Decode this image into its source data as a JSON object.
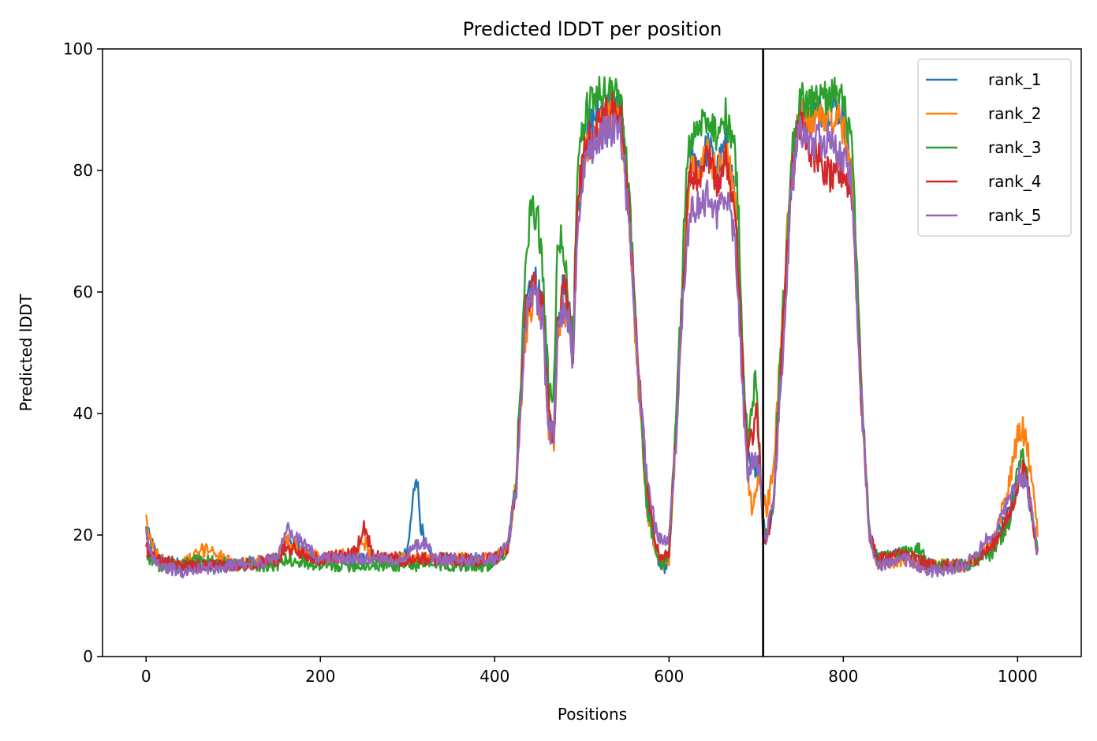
{
  "chart_data": {
    "type": "line",
    "title": "Predicted lDDT per position",
    "xlabel": "Positions",
    "ylabel": "Predicted lDDT",
    "xlim": [
      -50,
      1073
    ],
    "ylim": [
      0,
      100
    ],
    "xticks": [
      0,
      200,
      400,
      600,
      800,
      1000
    ],
    "yticks": [
      0,
      20,
      40,
      60,
      80,
      100
    ],
    "legend_position": "top-right",
    "grid": false,
    "vline_x": 708,
    "vline_color": "#000000",
    "noise_amplitude": 3,
    "series": [
      {
        "name": "rank_1",
        "color": "#1f77b4",
        "x": [
          0,
          5,
          15,
          40,
          100,
          150,
          160,
          200,
          260,
          290,
          300,
          305,
          310,
          315,
          320,
          330,
          360,
          400,
          415,
          425,
          435,
          445,
          455,
          462,
          468,
          472,
          478,
          485,
          490,
          495,
          505,
          515,
          525,
          535,
          545,
          555,
          565,
          575,
          585,
          592,
          600,
          608,
          615,
          620,
          625,
          635,
          645,
          655,
          665,
          675,
          680,
          685,
          690,
          695,
          700,
          704,
          708,
          712,
          720,
          730,
          740,
          750,
          760,
          770,
          780,
          790,
          800,
          810,
          816,
          820,
          830,
          840,
          870,
          900,
          940,
          970,
          990,
          1000,
          1005,
          1012,
          1018,
          1023
        ],
        "y": [
          21,
          19,
          16,
          15,
          15,
          16,
          19,
          16,
          16,
          16,
          17,
          24,
          31,
          22,
          18,
          16,
          16,
          16,
          18,
          29,
          55,
          63,
          58,
          40,
          36,
          54,
          60,
          57,
          50,
          74,
          86,
          89,
          90,
          91,
          90,
          72,
          45,
          26,
          17,
          14,
          16,
          36,
          58,
          74,
          81,
          81,
          84,
          80,
          84,
          77,
          64,
          46,
          33,
          30,
          32,
          34,
          22,
          20,
          25,
          50,
          78,
          90,
          88,
          90,
          90,
          91,
          89,
          80,
          60,
          45,
          20,
          16,
          17,
          15,
          15,
          18,
          24,
          28,
          30,
          27,
          22,
          17
        ]
      },
      {
        "name": "rank_2",
        "color": "#ff7f0e",
        "x": [
          0,
          5,
          15,
          40,
          70,
          100,
          150,
          160,
          200,
          240,
          250,
          260,
          290,
          310,
          330,
          360,
          400,
          415,
          425,
          435,
          445,
          455,
          462,
          468,
          472,
          478,
          485,
          490,
          495,
          505,
          515,
          525,
          535,
          545,
          555,
          565,
          575,
          585,
          592,
          600,
          608,
          615,
          620,
          625,
          635,
          645,
          655,
          665,
          675,
          680,
          685,
          690,
          695,
          700,
          704,
          708,
          712,
          720,
          730,
          740,
          750,
          760,
          770,
          780,
          790,
          800,
          810,
          816,
          820,
          830,
          840,
          870,
          900,
          940,
          970,
          990,
          1000,
          1005,
          1012,
          1018,
          1023
        ],
        "y": [
          22,
          19,
          16,
          15,
          18,
          15,
          16,
          19,
          16,
          17,
          19,
          16,
          16,
          16,
          16,
          16,
          16,
          18,
          29,
          53,
          60,
          56,
          38,
          34,
          53,
          58,
          56,
          50,
          73,
          84,
          86,
          88,
          89,
          88,
          70,
          44,
          24,
          17,
          15,
          16,
          36,
          58,
          73,
          80,
          80,
          83,
          79,
          83,
          76,
          63,
          45,
          30,
          25,
          28,
          30,
          26,
          24,
          31,
          55,
          80,
          90,
          88,
          89,
          89,
          89,
          87,
          80,
          60,
          45,
          20,
          15,
          16,
          15,
          15,
          18,
          28,
          36,
          38,
          33,
          27,
          20
        ]
      },
      {
        "name": "rank_3",
        "color": "#2ca02c",
        "x": [
          0,
          5,
          15,
          40,
          60,
          100,
          150,
          160,
          200,
          260,
          290,
          310,
          330,
          360,
          400,
          415,
          425,
          435,
          440,
          445,
          450,
          455,
          460,
          462,
          468,
          472,
          478,
          485,
          490,
          495,
          505,
          515,
          525,
          535,
          545,
          555,
          565,
          575,
          585,
          592,
          600,
          608,
          615,
          620,
          625,
          635,
          645,
          655,
          665,
          675,
          680,
          685,
          690,
          695,
          700,
          704,
          708,
          712,
          720,
          730,
          740,
          750,
          760,
          770,
          780,
          790,
          800,
          810,
          816,
          820,
          830,
          840,
          885,
          900,
          940,
          970,
          990,
          1000,
          1005,
          1012,
          1018,
          1023
        ],
        "y": [
          17,
          16,
          15,
          15,
          16,
          15,
          15,
          16,
          15,
          15,
          15,
          15,
          15,
          15,
          15,
          18,
          30,
          62,
          72,
          73,
          72,
          64,
          50,
          42,
          44,
          70,
          67,
          60,
          52,
          80,
          90,
          92,
          93,
          93,
          92,
          75,
          46,
          24,
          17,
          15,
          17,
          38,
          62,
          80,
          86,
          87,
          89,
          86,
          89,
          84,
          72,
          50,
          35,
          40,
          47,
          33,
          21,
          20,
          26,
          55,
          82,
          92,
          91,
          92,
          92,
          93,
          91,
          84,
          62,
          46,
          20,
          16,
          18,
          15,
          15,
          17,
          22,
          30,
          34,
          28,
          21,
          17
        ]
      },
      {
        "name": "rank_4",
        "color": "#d62728",
        "x": [
          0,
          5,
          15,
          40,
          100,
          150,
          160,
          200,
          240,
          250,
          260,
          290,
          310,
          330,
          360,
          400,
          415,
          425,
          435,
          445,
          455,
          462,
          468,
          472,
          478,
          485,
          490,
          495,
          505,
          515,
          525,
          535,
          545,
          555,
          565,
          575,
          585,
          592,
          600,
          608,
          615,
          620,
          625,
          635,
          645,
          655,
          665,
          675,
          680,
          685,
          690,
          695,
          700,
          704,
          708,
          712,
          720,
          730,
          740,
          750,
          760,
          770,
          780,
          790,
          800,
          810,
          816,
          820,
          830,
          840,
          870,
          900,
          940,
          970,
          990,
          1000,
          1005,
          1012,
          1018,
          1023
        ],
        "y": [
          18,
          17,
          16,
          15,
          15,
          16,
          18,
          16,
          17,
          21,
          17,
          16,
          16,
          16,
          16,
          16,
          18,
          29,
          56,
          63,
          58,
          40,
          36,
          55,
          61,
          58,
          50,
          75,
          85,
          87,
          89,
          90,
          89,
          72,
          47,
          28,
          18,
          16,
          17,
          37,
          57,
          72,
          80,
          79,
          83,
          78,
          82,
          74,
          62,
          45,
          32,
          36,
          42,
          33,
          20,
          19,
          25,
          52,
          78,
          88,
          84,
          82,
          80,
          78,
          80,
          76,
          58,
          44,
          20,
          16,
          17,
          15,
          15,
          18,
          23,
          28,
          31,
          28,
          22,
          17
        ]
      },
      {
        "name": "rank_5",
        "color": "#9467bd",
        "x": [
          0,
          5,
          15,
          40,
          100,
          150,
          160,
          200,
          260,
          290,
          300,
          310,
          320,
          330,
          360,
          400,
          415,
          425,
          435,
          445,
          455,
          462,
          468,
          472,
          478,
          485,
          490,
          495,
          505,
          515,
          525,
          535,
          545,
          555,
          565,
          575,
          585,
          592,
          600,
          608,
          615,
          620,
          625,
          635,
          645,
          655,
          665,
          675,
          680,
          685,
          690,
          695,
          700,
          704,
          708,
          712,
          720,
          730,
          740,
          750,
          760,
          770,
          780,
          790,
          800,
          810,
          816,
          820,
          830,
          840,
          870,
          900,
          940,
          970,
          990,
          1000,
          1005,
          1012,
          1018,
          1023
        ],
        "y": [
          20,
          17,
          15,
          14,
          15,
          16,
          21,
          16,
          16,
          16,
          17,
          18,
          19,
          16,
          16,
          16,
          18,
          28,
          55,
          61,
          55,
          38,
          36,
          52,
          58,
          55,
          48,
          70,
          82,
          85,
          86,
          87,
          86,
          70,
          46,
          28,
          21,
          19,
          20,
          35,
          55,
          68,
          74,
          74,
          76,
          72,
          76,
          70,
          58,
          43,
          30,
          32,
          33,
          30,
          21,
          20,
          25,
          48,
          76,
          88,
          84,
          85,
          85,
          84,
          82,
          78,
          58,
          44,
          20,
          15,
          16,
          14,
          15,
          20,
          26,
          29,
          30,
          27,
          22,
          17
        ]
      }
    ]
  }
}
